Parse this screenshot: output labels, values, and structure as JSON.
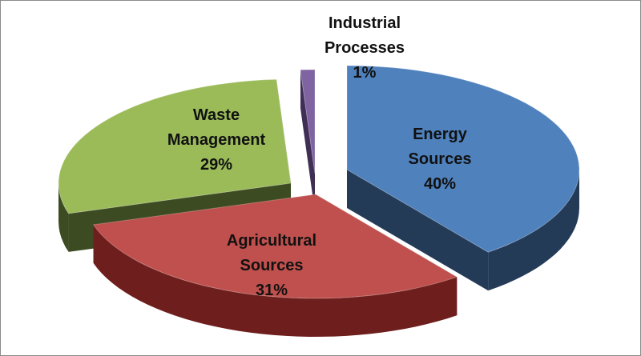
{
  "chart_data": {
    "type": "pie",
    "style": "3d-exploded",
    "title": "",
    "slices": [
      {
        "name": "Energy Sources",
        "label_lines": [
          "Energy",
          "Sources"
        ],
        "value": 40,
        "value_label": "40%",
        "top_color": "#4f81bd",
        "side_color": "#243b58"
      },
      {
        "name": "Agricultural Sources",
        "label_lines": [
          "Agricultural",
          "Sources"
        ],
        "value": 31,
        "value_label": "31%",
        "top_color": "#c0504d",
        "side_color": "#6e1f1d"
      },
      {
        "name": "Waste Management",
        "label_lines": [
          "Waste",
          "Management"
        ],
        "value": 29,
        "value_label": "29%",
        "top_color": "#9bbb59",
        "side_color": "#3d4b22"
      },
      {
        "name": "Industrial Processes",
        "label_lines": [
          "Industrial",
          "Processes"
        ],
        "value": 1,
        "value_label": "1%",
        "top_color": "#8064a2",
        "side_color": "#3f2f55"
      }
    ],
    "legend": "none",
    "data_labels": "category name and percentage"
  }
}
